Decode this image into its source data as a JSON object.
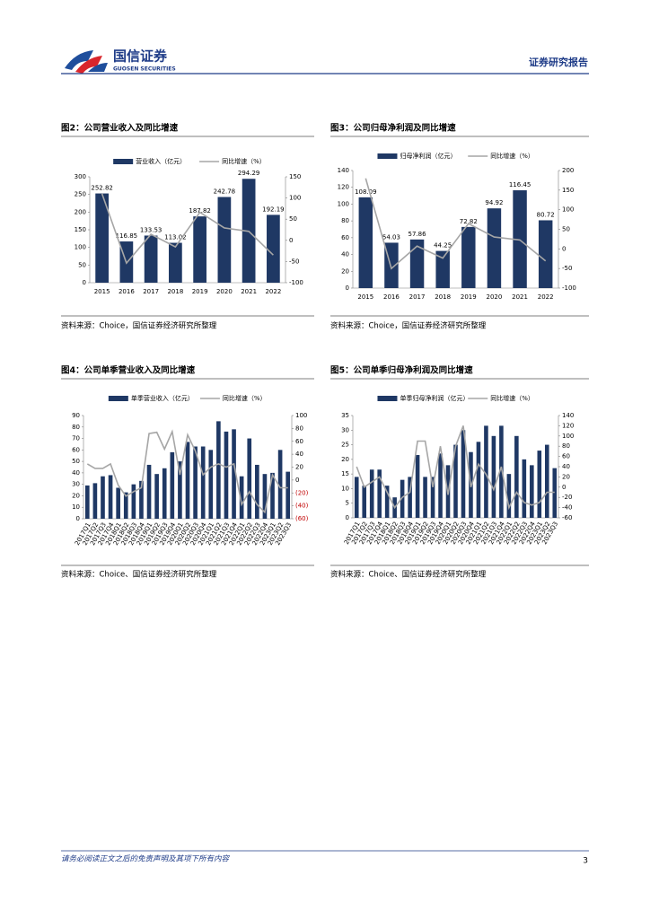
{
  "header": {
    "brand": "国信证券",
    "brand_en": "GUOSEN SECURITIES",
    "report_type": "证券研究报告"
  },
  "figures": [
    {
      "title": "图2：公司营业收入及同比增速",
      "source": "资料来源：Choice，国信证券经济研究所整理"
    },
    {
      "title": "图3：公司归母净利润及同比增速",
      "source": "资料来源：Choice，国信证券经济研究所整理"
    },
    {
      "title": "图4：公司单季营业收入及同比增速",
      "source": "资料来源：Choice、国信证券经济研究所整理"
    },
    {
      "title": "图5：公司单季归母净利润及同比增速",
      "source": "资料来源：Choice、国信证券经济研究所整理"
    }
  ],
  "chart_data": [
    {
      "type": "combo",
      "data_labels": true,
      "categories": [
        "2015",
        "2016",
        "2017",
        "2018",
        "2019",
        "2020",
        "2021",
        "2022"
      ],
      "series": [
        {
          "name": "营业收入（亿元）",
          "color": "#1f3864",
          "values": [
            252.82,
            116.85,
            133.53,
            113.02,
            187.82,
            242.78,
            294.29,
            192.19
          ]
        },
        {
          "name": "同比增速（%）",
          "color": "#a6a6a6",
          "axis": "y2",
          "values": [
            110,
            -53.8,
            14.3,
            -15.4,
            66.2,
            29.3,
            21.2,
            -34.7
          ]
        }
      ],
      "ylim": [
        0,
        300
      ],
      "yticks": [
        0,
        50,
        100,
        150,
        200,
        250,
        300
      ],
      "y2lim": [
        -100,
        150
      ],
      "y2ticks": [
        -100,
        -50,
        0,
        50,
        100,
        150
      ]
    },
    {
      "type": "combo",
      "data_labels": true,
      "categories": [
        "2015",
        "2016",
        "2017",
        "2018",
        "2019",
        "2020",
        "2021",
        "2022"
      ],
      "series": [
        {
          "name": "归母净利润（亿元）",
          "color": "#1f3864",
          "values": [
            108.09,
            54.03,
            57.86,
            44.25,
            72.82,
            94.92,
            116.45,
            80.72
          ]
        },
        {
          "name": "同比增速（%）",
          "color": "#a6a6a6",
          "axis": "y2",
          "values": [
            180,
            -50,
            7.1,
            -23.5,
            64.6,
            30.3,
            22.7,
            -30.7
          ]
        }
      ],
      "ylim": [
        0,
        140
      ],
      "yticks": [
        0,
        20,
        40,
        60,
        80,
        100,
        120,
        140
      ],
      "y2lim": [
        -100,
        200
      ],
      "y2ticks": [
        -100,
        -50,
        0,
        50,
        100,
        150,
        200
      ]
    },
    {
      "type": "combo",
      "data_labels": false,
      "y2_negative_tick_color": "#c00000",
      "categories": [
        "2017Q1",
        "2017Q2",
        "2017Q3",
        "2017Q4",
        "2018Q1",
        "2018Q2",
        "2018Q3",
        "2018Q4",
        "2019Q1",
        "2019Q2",
        "2019Q3",
        "2019Q4",
        "2020Q1",
        "2020Q2",
        "2020Q3",
        "2020Q4",
        "2021Q1",
        "2021Q2",
        "2021Q3",
        "2021Q4",
        "2022Q1",
        "2022Q2",
        "2022Q3",
        "2022Q4",
        "2023Q1",
        "2023Q2",
        "2023Q3"
      ],
      "series": [
        {
          "name": "单季营业收入（亿元）",
          "color": "#1f3864",
          "values": [
            29,
            31,
            37,
            38,
            27,
            23,
            30,
            33,
            47,
            39,
            44,
            58,
            50,
            67,
            63,
            63,
            60,
            85,
            76,
            78,
            37,
            70,
            47,
            39,
            40,
            60,
            41
          ]
        },
        {
          "name": "同比增速（%）",
          "color": "#a6a6a6",
          "axis": "y2",
          "values": [
            25,
            18,
            18,
            25,
            -8,
            -25,
            -18,
            -12,
            72,
            74,
            48,
            75,
            8,
            70,
            45,
            8,
            20,
            25,
            20,
            25,
            -38,
            -18,
            -38,
            -50,
            8,
            -12,
            -12
          ]
        }
      ],
      "ylim": [
        0,
        90
      ],
      "yticks": [
        0,
        10,
        20,
        30,
        40,
        50,
        60,
        70,
        80,
        90
      ],
      "y2lim": [
        -60,
        100
      ],
      "y2ticks": [
        {
          "value": -60,
          "label": "(60)"
        },
        {
          "value": -40,
          "label": "(40)"
        },
        {
          "value": -20,
          "label": "(20)"
        },
        0,
        20,
        40,
        60,
        80,
        100
      ]
    },
    {
      "type": "combo",
      "data_labels": false,
      "categories": [
        "2017Q1",
        "2017Q2",
        "2017Q3",
        "2017Q4",
        "2018Q1",
        "2018Q2",
        "2018Q3",
        "2018Q4",
        "2019Q1",
        "2019Q2",
        "2019Q3",
        "2019Q4",
        "2020Q1",
        "2020Q2",
        "2020Q3",
        "2020Q4",
        "2021Q1",
        "2021Q2",
        "2021Q3",
        "2021Q4",
        "2022Q1",
        "2022Q2",
        "2022Q3",
        "2022Q4",
        "2023Q1",
        "2023Q2",
        "2023Q3"
      ],
      "series": [
        {
          "name": "单季归母净利润（亿元）",
          "color": "#1f3864",
          "values": [
            14,
            11,
            16.5,
            16.5,
            11,
            7,
            13,
            14,
            21.5,
            14,
            14,
            22,
            18,
            25,
            30,
            22.5,
            26,
            31.5,
            28,
            31.5,
            15,
            28,
            20,
            18,
            23,
            25,
            17
          ]
        },
        {
          "name": "同比增速（%）",
          "color": "#a6a6a6",
          "axis": "y2",
          "values": [
            40,
            0,
            10,
            20,
            -10,
            -40,
            -20,
            -10,
            90,
            90,
            0,
            80,
            -15,
            80,
            120,
            0,
            45,
            25,
            -5,
            40,
            -40,
            -10,
            -30,
            -35,
            -30,
            -10,
            -10
          ]
        }
      ],
      "ylim": [
        0,
        35
      ],
      "yticks": [
        0,
        5,
        10,
        15,
        20,
        25,
        30,
        35
      ],
      "y2lim": [
        -60,
        140
      ],
      "y2ticks": [
        -60,
        -40,
        -20,
        0,
        20,
        40,
        60,
        80,
        100,
        120,
        140
      ]
    }
  ],
  "footer": {
    "disclaimer": "请务必阅读正文之后的免责声明及其项下所有内容",
    "page": 3
  }
}
